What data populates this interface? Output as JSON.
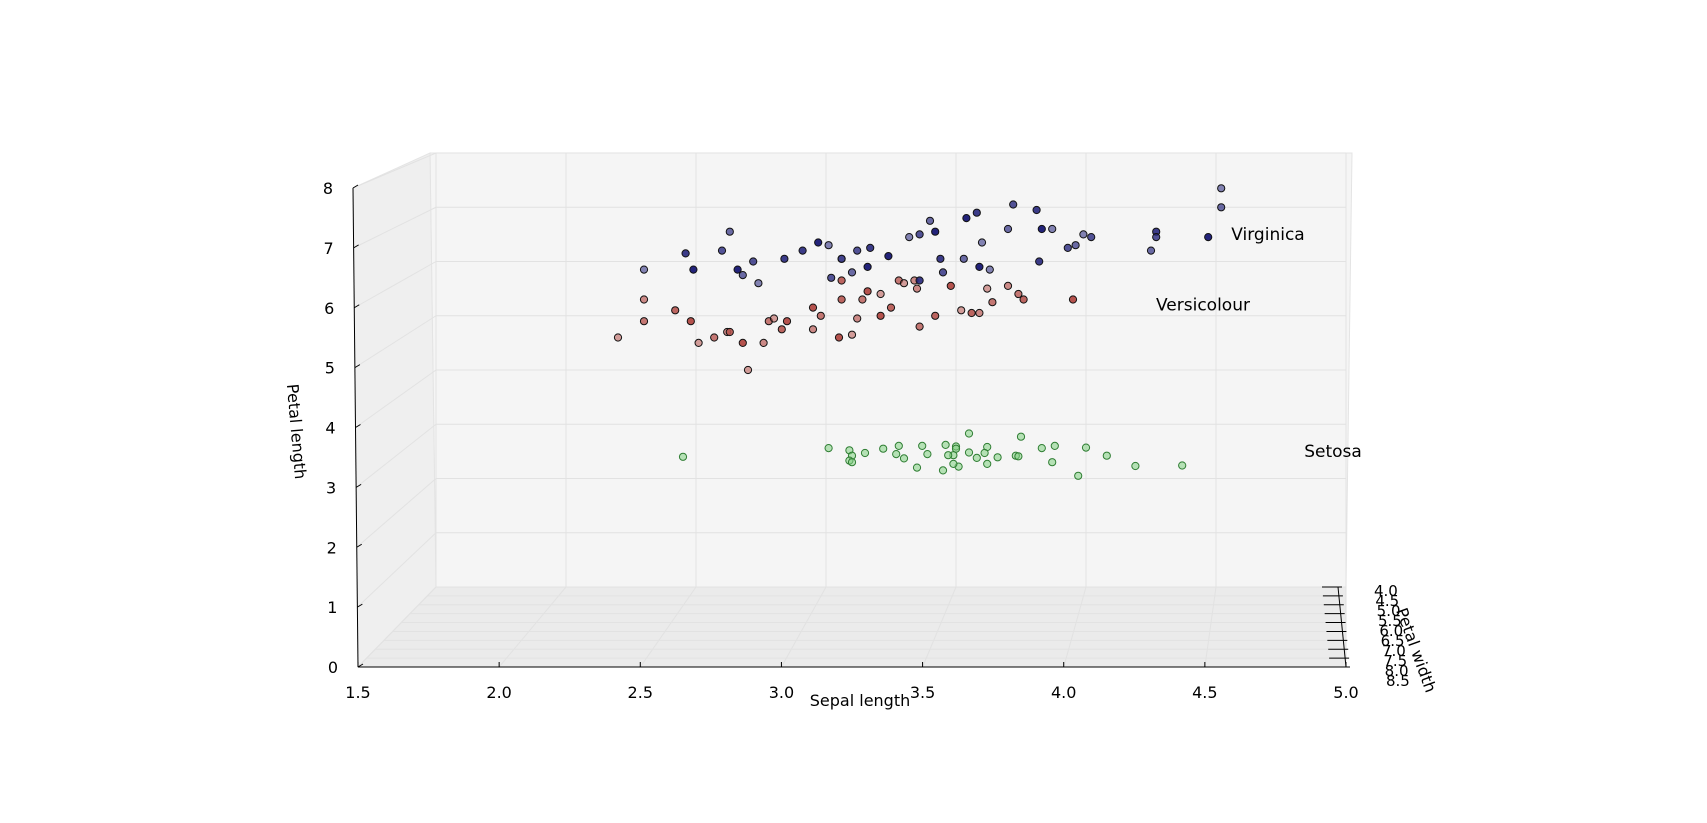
{
  "chart_data": {
    "type": "scatter",
    "projection": "3d",
    "xlabel": "Sepal length",
    "ylabel": "Petal width",
    "zlabel": "Petal length",
    "xlim": [
      1.5,
      5.0
    ],
    "zlim": [
      0,
      8
    ],
    "x_ticks": [
      "1.5",
      "2.0",
      "2.5",
      "3.0",
      "3.5",
      "4.0",
      "4.5",
      "5.0"
    ],
    "z_ticks": [
      "0",
      "1",
      "2",
      "3",
      "4",
      "5",
      "6",
      "7",
      "8"
    ],
    "y_ticks": [
      "4.0",
      "4.5",
      "5.0",
      "5.5",
      "6.0",
      "6.5",
      "7.0",
      "7.5",
      "8.0",
      "8.5"
    ],
    "grid": true,
    "annotations": [
      {
        "text": "Virginica",
        "x": 4.7,
        "z": 6.4
      },
      {
        "text": "Versicolour",
        "x": 4.45,
        "z": 5.1
      },
      {
        "text": "Setosa",
        "x": 4.95,
        "z": 2.4
      }
    ],
    "series": [
      {
        "name": "Setosa",
        "color": "#7fd07f",
        "points": [
          [
            2.45,
            2.4
          ],
          [
            3.01,
            2.56
          ],
          [
            3.09,
            2.52
          ],
          [
            3.22,
            2.55
          ],
          [
            3.28,
            2.6
          ],
          [
            3.37,
            2.6
          ],
          [
            3.46,
            2.62
          ],
          [
            3.5,
            2.59
          ],
          [
            3.55,
            2.83
          ],
          [
            3.62,
            2.58
          ],
          [
            3.75,
            2.77
          ],
          [
            3.88,
            2.6
          ],
          [
            4.0,
            2.57
          ],
          [
            3.1,
            2.42
          ],
          [
            3.09,
            2.33
          ],
          [
            3.27,
            2.45
          ],
          [
            3.3,
            2.37
          ],
          [
            3.39,
            2.45
          ],
          [
            3.49,
            2.43
          ],
          [
            3.5,
            2.55
          ],
          [
            3.55,
            2.48
          ],
          [
            3.61,
            2.47
          ],
          [
            3.66,
            2.39
          ],
          [
            3.73,
            2.42
          ],
          [
            3.74,
            2.41
          ],
          [
            3.83,
            2.56
          ],
          [
            3.87,
            2.3
          ],
          [
            3.97,
            2.05
          ],
          [
            4.08,
            2.42
          ],
          [
            4.19,
            2.23
          ],
          [
            4.37,
            2.24
          ],
          [
            3.45,
            2.15
          ],
          [
            3.51,
            2.22
          ],
          [
            3.35,
            2.2
          ],
          [
            3.47,
            2.43
          ],
          [
            3.58,
            2.38
          ],
          [
            3.62,
            2.27
          ],
          [
            3.1,
            2.3
          ],
          [
            3.15,
            2.47
          ],
          [
            3.49,
            2.27
          ]
        ]
      },
      {
        "name": "Versicolour",
        "color": "#b5524d",
        "points": [
          [
            2.2,
            4.6
          ],
          [
            2.3,
            5.3
          ],
          [
            2.3,
            4.9
          ],
          [
            2.42,
            5.1
          ],
          [
            2.48,
            4.9
          ],
          [
            2.51,
            4.5
          ],
          [
            2.62,
            4.7
          ],
          [
            2.57,
            4.6
          ],
          [
            2.63,
            4.7
          ],
          [
            2.68,
            4.5
          ],
          [
            2.7,
            4.0
          ],
          [
            2.76,
            4.5
          ],
          [
            2.78,
            4.9
          ],
          [
            2.83,
            4.75
          ],
          [
            2.85,
            4.9
          ],
          [
            2.8,
            4.95
          ],
          [
            2.95,
            4.75
          ],
          [
            2.98,
            5.0
          ],
          [
            3.06,
            5.3
          ],
          [
            3.05,
            4.6
          ],
          [
            3.1,
            4.65
          ],
          [
            3.12,
            4.95
          ],
          [
            3.14,
            5.3
          ],
          [
            3.25,
            5.15
          ],
          [
            3.21,
            5.0
          ],
          [
            3.21,
            5.4
          ],
          [
            3.35,
            5.5
          ],
          [
            3.28,
            5.65
          ],
          [
            3.06,
            5.65
          ],
          [
            3.16,
            5.45
          ],
          [
            3.3,
            5.6
          ],
          [
            3.34,
            5.65
          ],
          [
            3.36,
            4.8
          ],
          [
            3.42,
            5.0
          ],
          [
            3.48,
            5.55
          ],
          [
            3.62,
            5.5
          ],
          [
            3.7,
            5.55
          ],
          [
            3.74,
            5.4
          ],
          [
            3.76,
            5.3
          ],
          [
            3.95,
            5.3
          ],
          [
            3.52,
            5.1
          ],
          [
            3.59,
            5.05
          ],
          [
            3.64,
            5.25
          ],
          [
            3.56,
            5.05
          ],
          [
            2.95,
            5.15
          ]
        ]
      },
      {
        "name": "Virginica",
        "color": "#23237a",
        "points": [
          [
            2.3,
            5.85
          ],
          [
            2.63,
            6.55
          ],
          [
            2.72,
            6.0
          ],
          [
            2.84,
            6.05
          ],
          [
            2.97,
            6.35
          ],
          [
            3.01,
            6.3
          ],
          [
            3.06,
            6.05
          ],
          [
            3.12,
            6.2
          ],
          [
            3.17,
            6.25
          ],
          [
            3.24,
            6.1
          ],
          [
            3.32,
            6.45
          ],
          [
            3.4,
            6.75
          ],
          [
            3.36,
            6.5
          ],
          [
            3.44,
            6.05
          ],
          [
            3.54,
            6.8
          ],
          [
            3.6,
            6.35
          ],
          [
            3.7,
            6.6
          ],
          [
            3.72,
            7.05
          ],
          [
            3.81,
            6.95
          ],
          [
            3.83,
            6.6
          ],
          [
            3.87,
            6.6
          ],
          [
            3.96,
            6.3
          ],
          [
            4.02,
            6.45
          ],
          [
            4.27,
            6.55
          ],
          [
            4.47,
            6.45
          ],
          [
            4.52,
            7.35
          ],
          [
            4.52,
            7.0
          ],
          [
            3.93,
            6.25
          ],
          [
            3.82,
            6.0
          ],
          [
            3.59,
            5.9
          ],
          [
            3.63,
            5.85
          ],
          [
            3.53,
            6.05
          ],
          [
            3.45,
            5.8
          ],
          [
            3.36,
            5.65
          ],
          [
            3.16,
            5.9
          ],
          [
            3.06,
            6.05
          ],
          [
            3.1,
            5.8
          ],
          [
            3.02,
            5.7
          ],
          [
            2.91,
            6.2
          ],
          [
            2.66,
            5.85
          ],
          [
            2.74,
            5.6
          ],
          [
            2.68,
            5.75
          ],
          [
            2.6,
            6.2
          ],
          [
            2.46,
            6.15
          ],
          [
            2.49,
            5.85
          ],
          [
            3.99,
            6.5
          ],
          [
            4.25,
            6.2
          ],
          [
            4.27,
            6.45
          ],
          [
            3.58,
            6.9
          ],
          [
            3.42,
            6.55
          ]
        ]
      }
    ]
  }
}
